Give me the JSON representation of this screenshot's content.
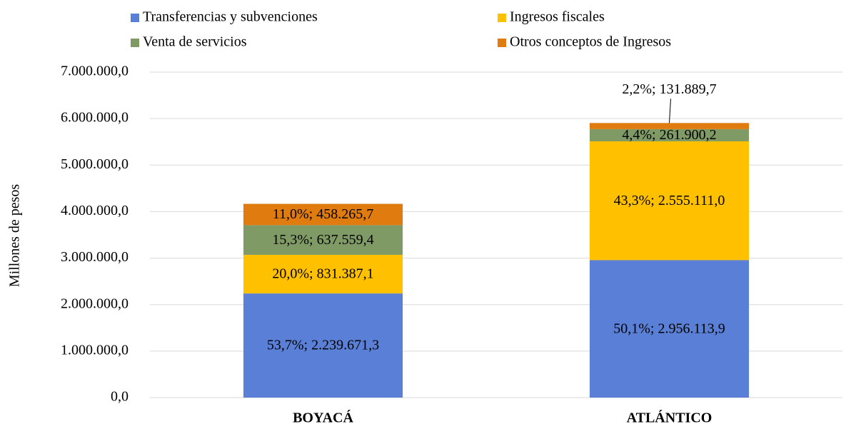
{
  "chart_data": {
    "type": "stacked_bar",
    "y_label": "Millones  de pesos",
    "categories": [
      "BOYACÁ",
      "ATLÁNTICO"
    ],
    "series": [
      {
        "name": "Transferencias y subvenciones",
        "color": "#5a7fd6",
        "values": [
          2239671.3,
          2956113.9
        ],
        "value_labels": [
          "53,7%; 2.239.671,3",
          "50,1%; 2.956.113,9"
        ],
        "label_color": "#ffffff"
      },
      {
        "name": "Ingresos fiscales",
        "color": "#ffc000",
        "values": [
          831387.1,
          2555111.0
        ],
        "value_labels": [
          "20,0%; 831.387,1",
          "43,3%; 2.555.111,0"
        ],
        "label_color": "#000000"
      },
      {
        "name": "Venta de servicios",
        "color": "#7f9a65",
        "values": [
          637559.4,
          261900.2
        ],
        "value_labels": [
          "15,3%; 637.559,4",
          "4,4%; 261.900,2"
        ],
        "label_color": "#000000"
      },
      {
        "name": "Otros conceptos de Ingresos",
        "color": "#e07b10",
        "values": [
          458265.7,
          131889.7
        ],
        "value_labels": [
          "11,0%; 458.265,7",
          "2,2%; 131.889,7"
        ],
        "label_color": "#000000"
      }
    ],
    "ylim": [
      0,
      7000000
    ],
    "yticks": [
      {
        "value": 0,
        "label": "0,0"
      },
      {
        "value": 1000000,
        "label": "1.000.000,0"
      },
      {
        "value": 2000000,
        "label": "2.000.000,0"
      },
      {
        "value": 3000000,
        "label": "3.000.000,0"
      },
      {
        "value": 4000000,
        "label": "4.000.000,0"
      },
      {
        "value": 5000000,
        "label": "5.000.000,0"
      },
      {
        "value": 6000000,
        "label": "6.000.000,0"
      },
      {
        "value": 7000000,
        "label": "7.000.000,0"
      }
    ],
    "grid": true
  }
}
